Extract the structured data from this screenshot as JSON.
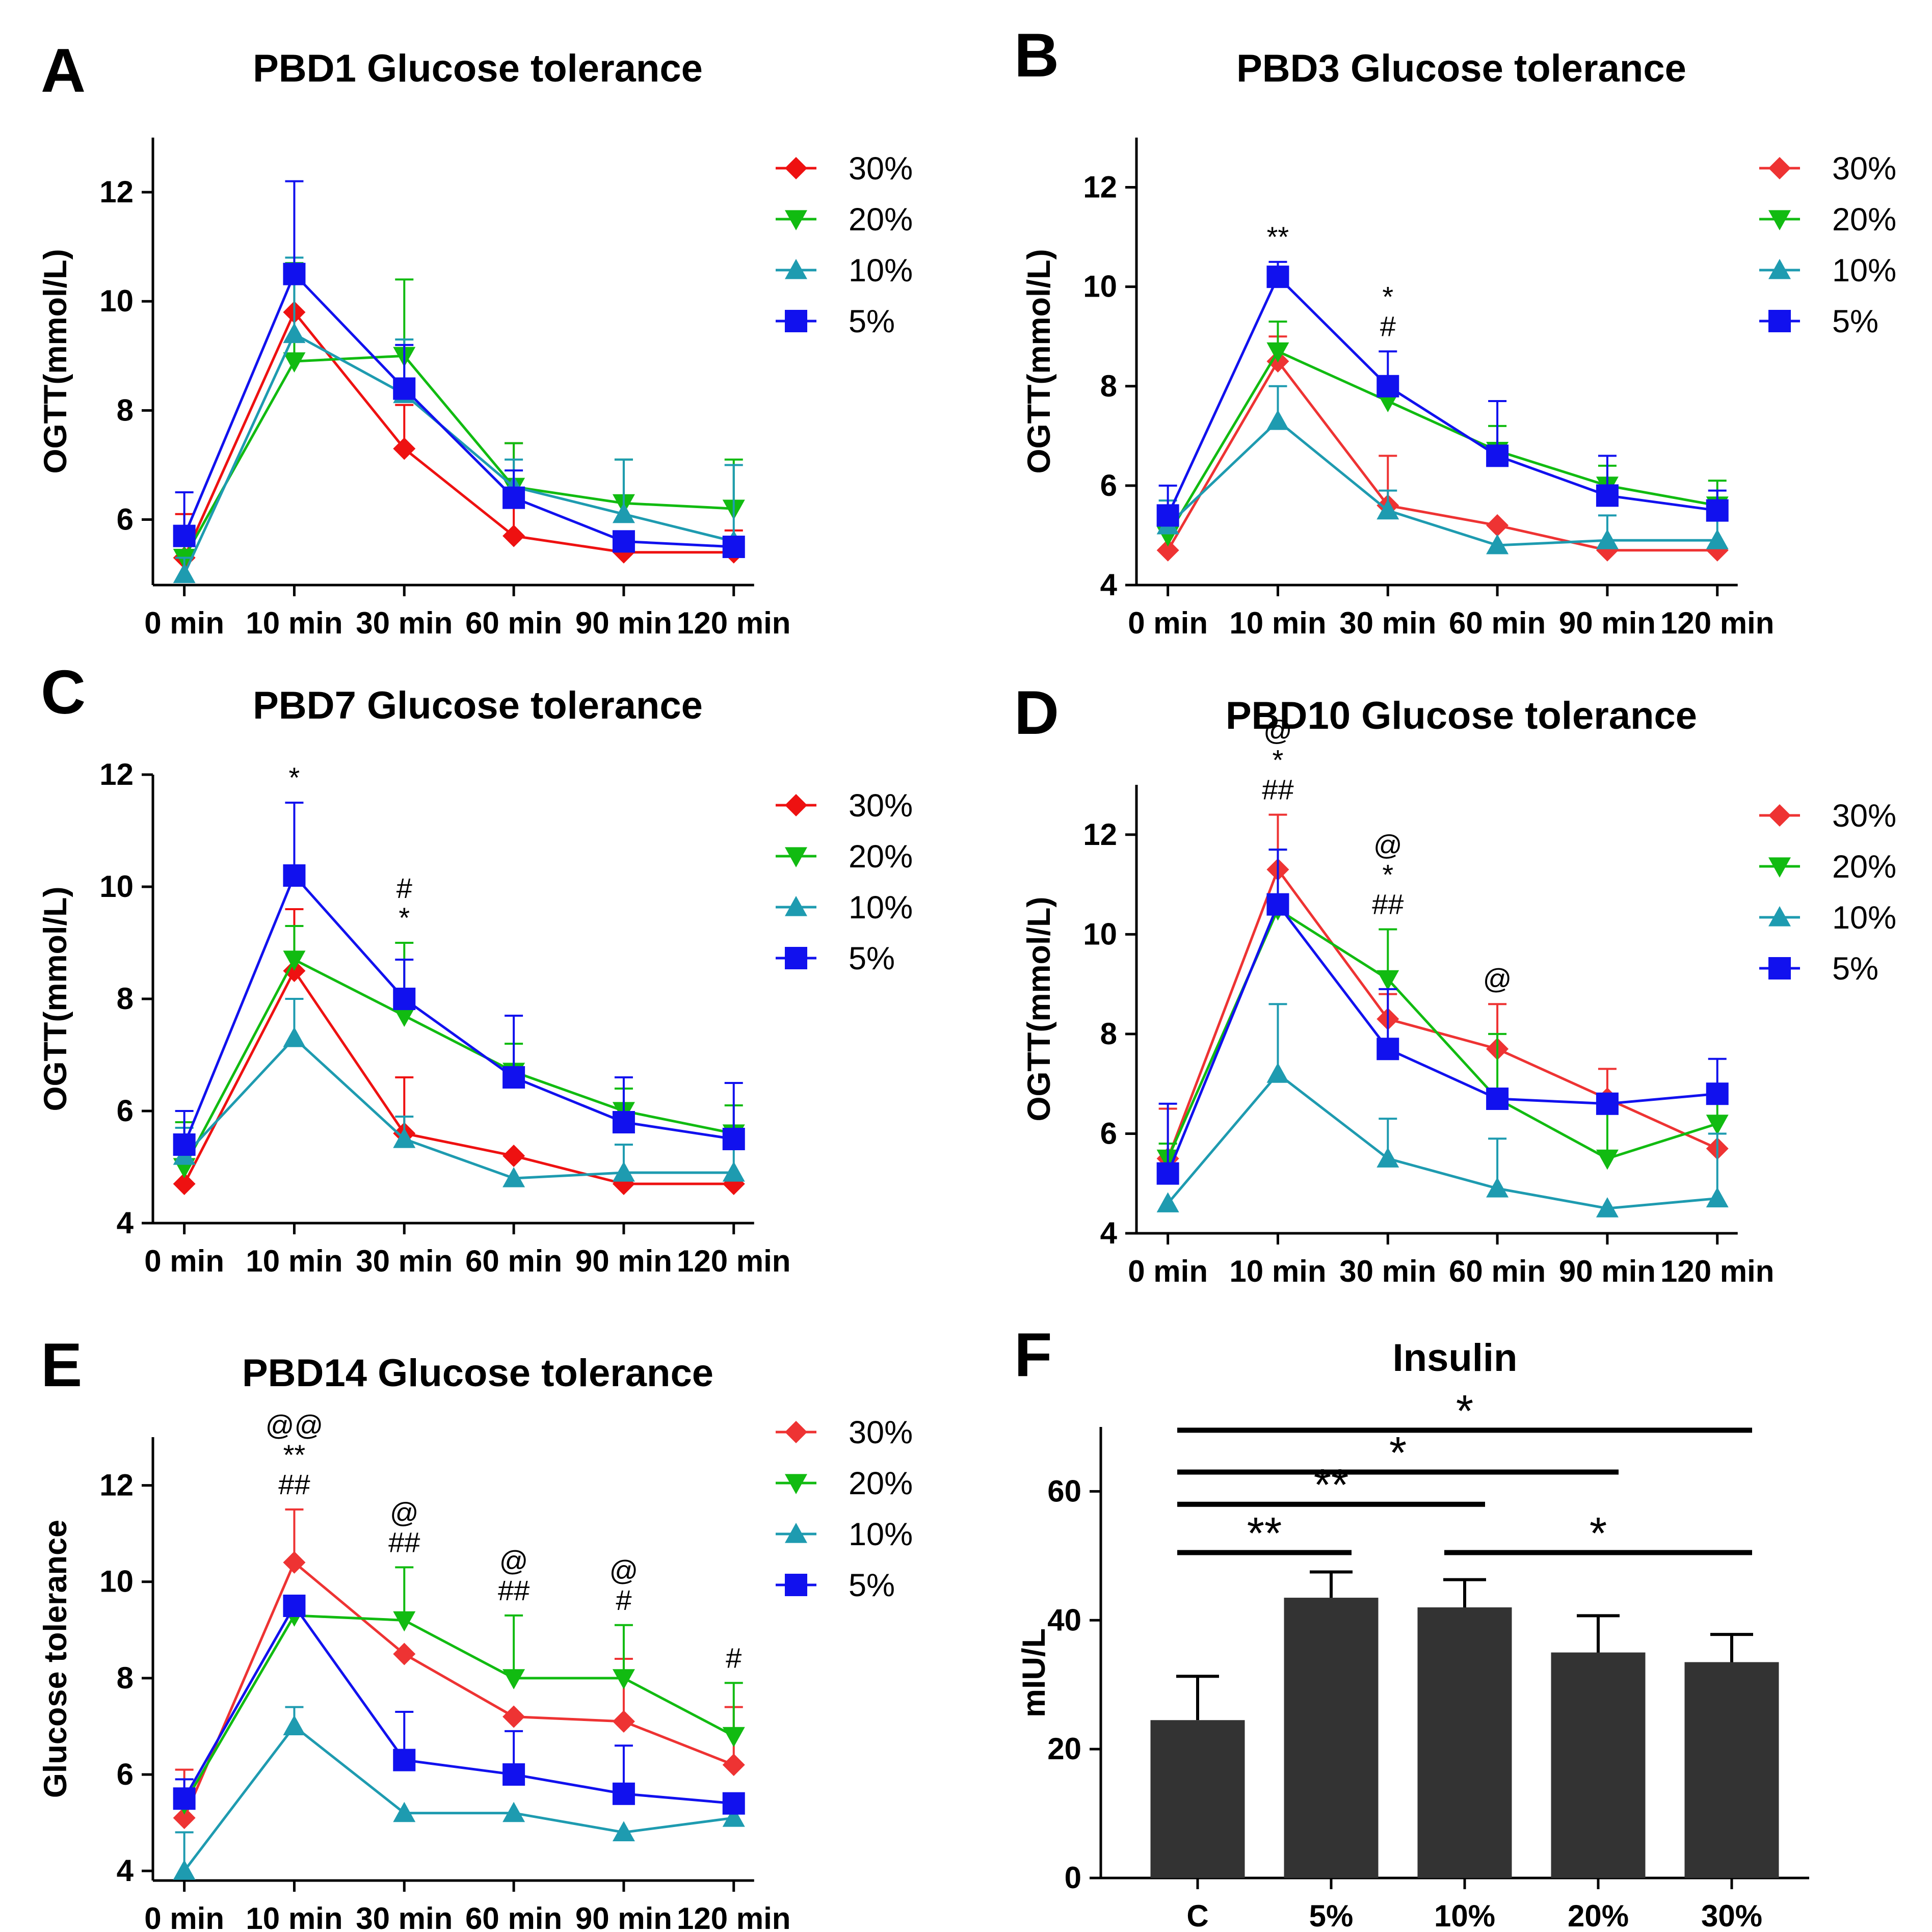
{
  "chart_data": [
    {
      "panel": "A",
      "type": "line",
      "title": "PBD1 Glucose tolerance",
      "ylabel": "OGTT(mmol/L)",
      "ylim": [
        4.8,
        13
      ],
      "yticks": [
        6,
        8,
        10,
        12
      ],
      "categories": [
        "0 min",
        "10 min",
        "30 min",
        "60 min",
        "90 min",
        "120 min"
      ],
      "series": [
        {
          "name": "30%",
          "color": "#ee1111",
          "marker": "diamond",
          "values": [
            5.3,
            9.8,
            7.3,
            5.7,
            5.4,
            5.4
          ],
          "err": [
            0.8,
            0.8,
            0.8,
            1.7,
            0,
            0.4
          ]
        },
        {
          "name": "20%",
          "color": "#11bb11",
          "marker": "triangle-down",
          "values": [
            5.3,
            8.9,
            9.0,
            6.6,
            6.3,
            6.2
          ],
          "err": [
            0.4,
            1.8,
            1.4,
            0.8,
            0.8,
            0.9
          ]
        },
        {
          "name": "10%",
          "color": "#1e9bb0",
          "marker": "triangle-up",
          "values": [
            5.0,
            9.4,
            8.3,
            6.6,
            6.1,
            5.6
          ],
          "err": [
            0.3,
            1.4,
            1.0,
            0.5,
            1.0,
            1.4
          ]
        },
        {
          "name": "5%",
          "color": "#1111ee",
          "marker": "square",
          "values": [
            5.7,
            10.5,
            8.4,
            6.4,
            5.6,
            5.5
          ],
          "err": [
            0.8,
            1.7,
            0.8,
            0.5,
            0,
            0
          ]
        }
      ],
      "annotations": []
    },
    {
      "panel": "B",
      "type": "line",
      "title": "PBD3 Glucose tolerance",
      "ylabel": "OGTT(mmol/L)",
      "ylim": [
        4,
        13
      ],
      "yticks": [
        4,
        6,
        8,
        10,
        12
      ],
      "categories": [
        "0 min",
        "10 min",
        "30 min",
        "60 min",
        "90 min",
        "120 min"
      ],
      "series": [
        {
          "name": "30%",
          "color": "#ee3333",
          "marker": "diamond",
          "values": [
            4.7,
            8.5,
            5.6,
            5.2,
            4.7,
            4.7
          ],
          "err": [
            0,
            0.5,
            1.0,
            0,
            0,
            0
          ]
        },
        {
          "name": "20%",
          "color": "#11bb11",
          "marker": "triangle-down",
          "values": [
            5.0,
            8.7,
            7.7,
            6.7,
            6.0,
            5.6
          ],
          "err": [
            0.6,
            0.6,
            0.3,
            0.5,
            0.4,
            0.5
          ]
        },
        {
          "name": "10%",
          "color": "#1e9bb0",
          "marker": "triangle-up",
          "values": [
            5.2,
            7.3,
            5.5,
            4.8,
            4.9,
            4.9
          ],
          "err": [
            0.5,
            0.7,
            0.4,
            0,
            0.5,
            0.5
          ]
        },
        {
          "name": "5%",
          "color": "#1111ee",
          "marker": "square",
          "values": [
            5.4,
            10.2,
            8.0,
            6.6,
            5.8,
            5.5
          ],
          "err": [
            0.6,
            0.3,
            0.7,
            1.1,
            0.8,
            0.4
          ]
        }
      ],
      "annotations": [
        {
          "x": "10 min",
          "lines": [
            "**"
          ]
        },
        {
          "x": "30 min",
          "lines": [
            "*",
            "#"
          ]
        }
      ]
    },
    {
      "panel": "C",
      "type": "line",
      "title": "PBD7 Glucose tolerance",
      "ylabel": "OGTT(mmol/L)",
      "ylim": [
        4,
        12
      ],
      "yticks": [
        4,
        6,
        8,
        10,
        12
      ],
      "categories": [
        "0 min",
        "10 min",
        "30 min",
        "60 min",
        "90 min",
        "120 min"
      ],
      "series": [
        {
          "name": "30%",
          "color": "#ee1111",
          "marker": "diamond",
          "values": [
            4.7,
            8.5,
            5.6,
            5.2,
            4.7,
            4.7
          ],
          "err": [
            0,
            1.1,
            1.0,
            0,
            0,
            0
          ]
        },
        {
          "name": "20%",
          "color": "#11bb11",
          "marker": "triangle-down",
          "values": [
            5.0,
            8.7,
            7.7,
            6.7,
            6.0,
            5.6
          ],
          "err": [
            0.8,
            0.6,
            1.3,
            0.5,
            0.4,
            0.5
          ]
        },
        {
          "name": "10%",
          "color": "#1e9bb0",
          "marker": "triangle-up",
          "values": [
            5.2,
            7.3,
            5.5,
            4.8,
            4.9,
            4.9
          ],
          "err": [
            0.5,
            0.7,
            0.4,
            0,
            0.5,
            0.5
          ]
        },
        {
          "name": "5%",
          "color": "#1111ee",
          "marker": "square",
          "values": [
            5.4,
            10.2,
            8.0,
            6.6,
            5.8,
            5.5
          ],
          "err": [
            0.6,
            1.3,
            0.7,
            1.1,
            0.8,
            1.0
          ]
        }
      ],
      "annotations": [
        {
          "x": "10 min",
          "lines": [
            "*"
          ]
        },
        {
          "x": "30 min",
          "lines": [
            "#",
            "*"
          ]
        }
      ]
    },
    {
      "panel": "D",
      "type": "line",
      "title": "PBD10 Glucose tolerance",
      "ylabel": "OGTT(mmol/L)",
      "ylim": [
        4,
        13
      ],
      "yticks": [
        4,
        6,
        8,
        10,
        12
      ],
      "categories": [
        "0 min",
        "10 min",
        "30 min",
        "60 min",
        "90 min",
        "120 min"
      ],
      "series": [
        {
          "name": "30%",
          "color": "#ee3333",
          "marker": "diamond",
          "values": [
            5.5,
            11.3,
            8.3,
            7.7,
            6.7,
            5.7
          ],
          "err": [
            1.0,
            1.1,
            0.5,
            0.9,
            0.6,
            0
          ]
        },
        {
          "name": "20%",
          "color": "#11bb11",
          "marker": "triangle-down",
          "values": [
            5.5,
            10.5,
            9.1,
            6.7,
            5.5,
            6.2
          ],
          "err": [
            0.3,
            1.2,
            1.0,
            1.3,
            1.0,
            0.5
          ]
        },
        {
          "name": "10%",
          "color": "#1e9bb0",
          "marker": "triangle-up",
          "values": [
            4.6,
            7.2,
            5.5,
            4.9,
            4.5,
            4.7
          ],
          "err": [
            0,
            1.4,
            0.8,
            1.0,
            0,
            1.3
          ]
        },
        {
          "name": "5%",
          "color": "#1111ee",
          "marker": "square",
          "values": [
            5.2,
            10.6,
            7.7,
            6.7,
            6.6,
            6.8
          ],
          "err": [
            1.4,
            1.1,
            1.2,
            0,
            0,
            0.7
          ]
        }
      ],
      "annotations": [
        {
          "x": "10 min",
          "lines": [
            "@",
            "*",
            "##"
          ]
        },
        {
          "x": "30 min",
          "lines": [
            "@",
            "*",
            "##"
          ]
        },
        {
          "x": "60 min",
          "lines": [
            "@"
          ]
        }
      ]
    },
    {
      "panel": "E",
      "type": "line",
      "title": "PBD14 Glucose tolerance",
      "ylabel": "Glucose tolerance",
      "ylim": [
        3.8,
        13
      ],
      "yticks": [
        4,
        6,
        8,
        10,
        12
      ],
      "categories": [
        "0 min",
        "10 min",
        "30 min",
        "60 min",
        "90 min",
        "120 min"
      ],
      "series": [
        {
          "name": "30%",
          "color": "#ee3333",
          "marker": "diamond",
          "values": [
            5.1,
            10.4,
            8.5,
            7.2,
            7.1,
            6.2
          ],
          "err": [
            1.0,
            1.1,
            0,
            0,
            1.3,
            1.2
          ]
        },
        {
          "name": "20%",
          "color": "#11bb11",
          "marker": "triangle-down",
          "values": [
            5.4,
            9.3,
            9.2,
            8.0,
            8.0,
            6.8
          ],
          "err": [
            0,
            0,
            1.1,
            1.3,
            1.1,
            1.1
          ]
        },
        {
          "name": "10%",
          "color": "#1e9bb0",
          "marker": "triangle-up",
          "values": [
            4.0,
            7.0,
            5.2,
            5.2,
            4.8,
            5.1
          ],
          "err": [
            0.8,
            0.4,
            0,
            0,
            0,
            0
          ]
        },
        {
          "name": "5%",
          "color": "#1111ee",
          "marker": "square",
          "values": [
            5.5,
            9.5,
            6.3,
            6.0,
            5.6,
            5.4
          ],
          "err": [
            0.4,
            0,
            1.0,
            0.9,
            1.0,
            0
          ]
        }
      ],
      "annotations": [
        {
          "x": "10 min",
          "lines": [
            "@@",
            "**",
            "##"
          ]
        },
        {
          "x": "30 min",
          "lines": [
            "@",
            "##"
          ]
        },
        {
          "x": "60 min",
          "lines": [
            "@",
            "##"
          ]
        },
        {
          "x": "90 min",
          "lines": [
            "@",
            "#"
          ]
        },
        {
          "x": "120 min",
          "lines": [
            "#"
          ]
        }
      ]
    },
    {
      "panel": "F",
      "type": "bar",
      "title": "Insulin",
      "ylabel": "mIU/L",
      "ylim": [
        0,
        70
      ],
      "yticks": [
        0,
        20,
        40,
        60
      ],
      "categories": [
        "C",
        "5%",
        "10%",
        "20%",
        "30%"
      ],
      "values": [
        24.5,
        43.5,
        42.0,
        35.0,
        33.5
      ],
      "err": [
        6.8,
        4.0,
        4.3,
        5.7,
        4.3
      ],
      "color": "#333333",
      "significance": [
        {
          "from": "C",
          "to": "30%",
          "label": "*",
          "y": 69.5
        },
        {
          "from": "C",
          "to": "20%",
          "label": "*",
          "y": 63
        },
        {
          "from": "C",
          "to": "10%",
          "label": "**",
          "y": 58
        },
        {
          "from": "C",
          "to": "5%",
          "label": "**",
          "y": 50.5
        },
        {
          "from": "10%",
          "to": "30%",
          "label": "*",
          "y": 50.5
        }
      ]
    }
  ]
}
